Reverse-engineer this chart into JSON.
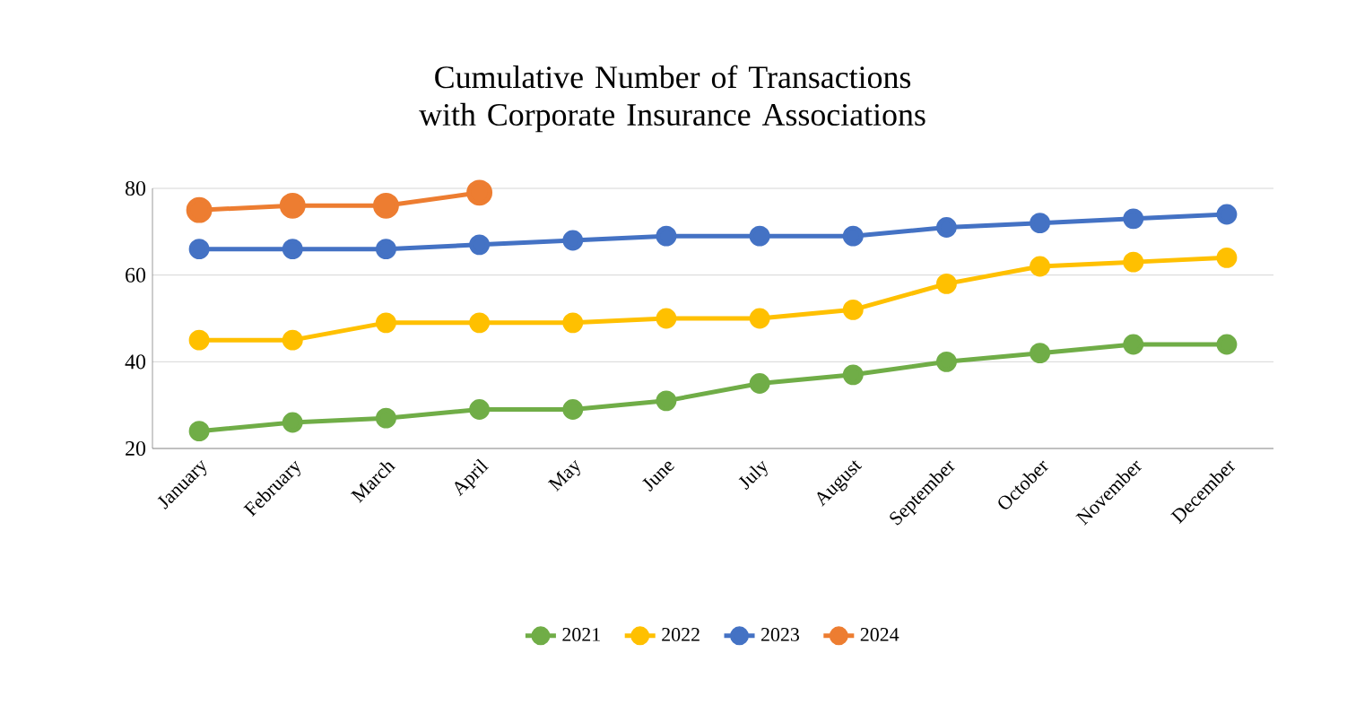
{
  "chart_data": {
    "type": "line",
    "title": "Cumulative Number of Transactions with Corporate Insurance Associations",
    "categories": [
      "January",
      "February",
      "March",
      "April",
      "May",
      "June",
      "July",
      "August",
      "September",
      "October",
      "November",
      "December"
    ],
    "series": [
      {
        "name": "2021",
        "color": "#70ad47",
        "values": [
          24,
          26,
          27,
          29,
          29,
          31,
          35,
          37,
          40,
          42,
          44,
          44
        ]
      },
      {
        "name": "2022",
        "color": "#ffc000",
        "values": [
          45,
          45,
          49,
          49,
          49,
          50,
          50,
          52,
          58,
          62,
          63,
          64
        ]
      },
      {
        "name": "2023",
        "color": "#4472c4",
        "values": [
          66,
          66,
          66,
          67,
          68,
          69,
          69,
          69,
          71,
          72,
          73,
          74
        ]
      },
      {
        "name": "2024",
        "color": "#ed7d31",
        "values": [
          75,
          76,
          76,
          79,
          null,
          null,
          null,
          null,
          null,
          null,
          null,
          null
        ]
      }
    ],
    "ylim": [
      20,
      80
    ],
    "yticks": [
      20,
      40,
      60,
      80
    ],
    "grid": "y",
    "legend": "bottom",
    "marker": "circle",
    "line_style": "solid"
  }
}
